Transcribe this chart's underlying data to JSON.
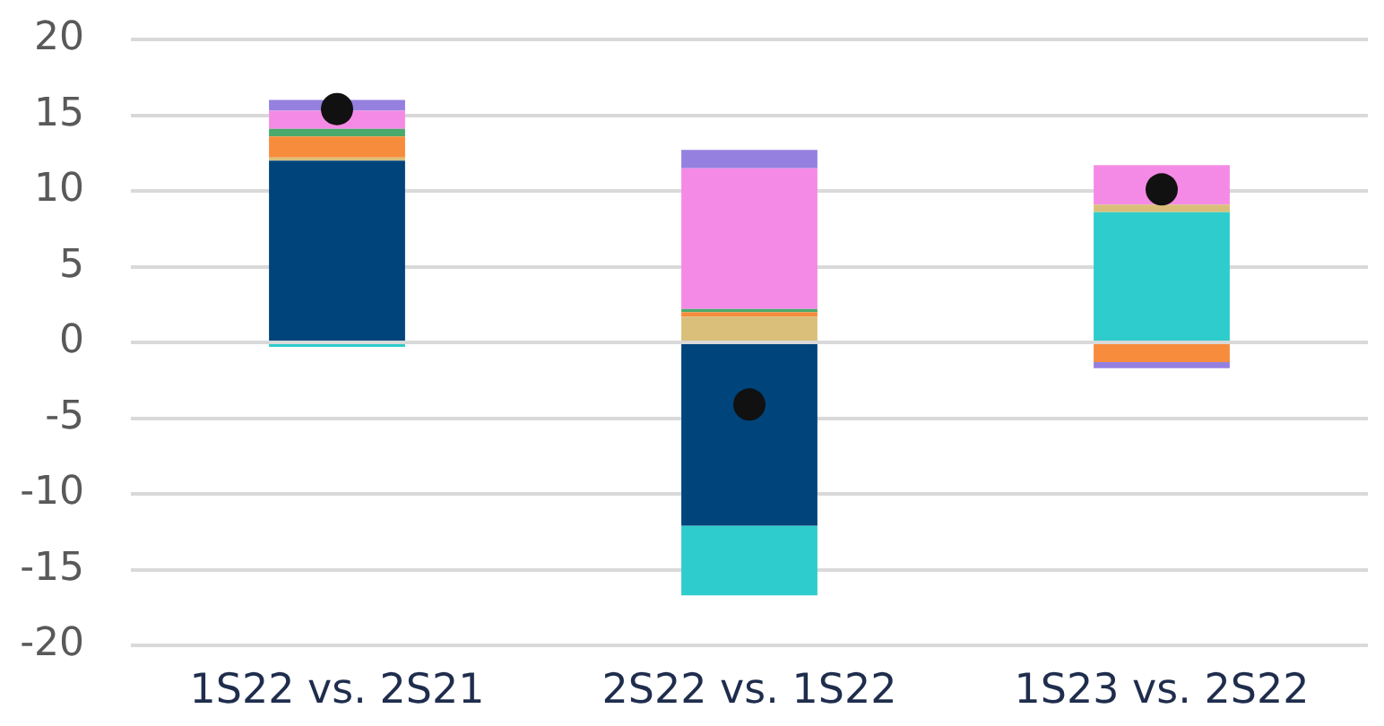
{
  "chart_data": {
    "type": "bar",
    "stacked": true,
    "categories": [
      "1S22 vs. 2S21",
      "2S22 vs. 1S22",
      "1S23 vs. 2S22"
    ],
    "series": [
      {
        "color": "#00447c",
        "values": [
          12.0,
          -12.1,
          null
        ]
      },
      {
        "color": "#2ecccc",
        "values": [
          -0.3,
          -4.6,
          8.6
        ]
      },
      {
        "color": "#d9bf7a",
        "values": [
          0.2,
          1.7,
          0.5
        ]
      },
      {
        "color": "#f78c3c",
        "values": [
          1.4,
          0.3,
          -1.3
        ]
      },
      {
        "color": "#4aa96c",
        "values": [
          0.5,
          0.2,
          null
        ]
      },
      {
        "color": "#f58ae6",
        "values": [
          1.2,
          9.3,
          2.6
        ]
      },
      {
        "color": "#9580e0",
        "values": [
          0.7,
          1.2,
          -0.4
        ]
      },
      {
        "type": "scatter",
        "color": "#111111",
        "x": [
          "1S22 vs. 2S21",
          "2S22 vs. 1S22",
          "1S23 vs. 2S22"
        ],
        "values": [
          15.4,
          -4.1,
          10.1
        ]
      }
    ],
    "marker": "circle",
    "ylim": [
      -20,
      20
    ],
    "yticks": [
      -20,
      -15,
      -10,
      -5,
      0,
      5,
      10,
      15,
      20
    ],
    "grid": "y"
  }
}
